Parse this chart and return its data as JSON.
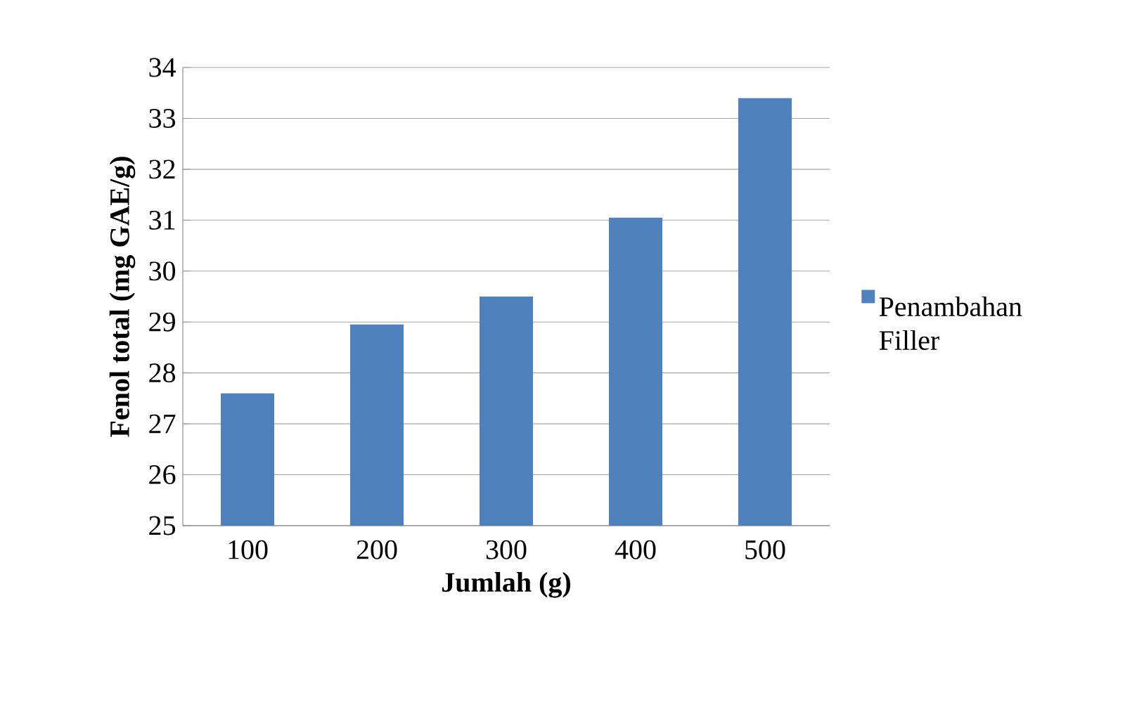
{
  "chart_data": {
    "type": "bar",
    "xlabel": "Jumlah (g)",
    "ylabel": "Fenol total (mg GAE/g)",
    "categories": [
      "100",
      "200",
      "300",
      "400",
      "500"
    ],
    "series": [
      {
        "name": "Penambahan Filler",
        "color": "#4f81bd",
        "values": [
          27.6,
          28.95,
          29.5,
          31.05,
          33.4
        ]
      }
    ],
    "ylim": [
      25,
      34
    ],
    "yticks": [
      25,
      26,
      27,
      28,
      29,
      30,
      31,
      32,
      33,
      34
    ],
    "grid": "y",
    "legend": "right"
  }
}
